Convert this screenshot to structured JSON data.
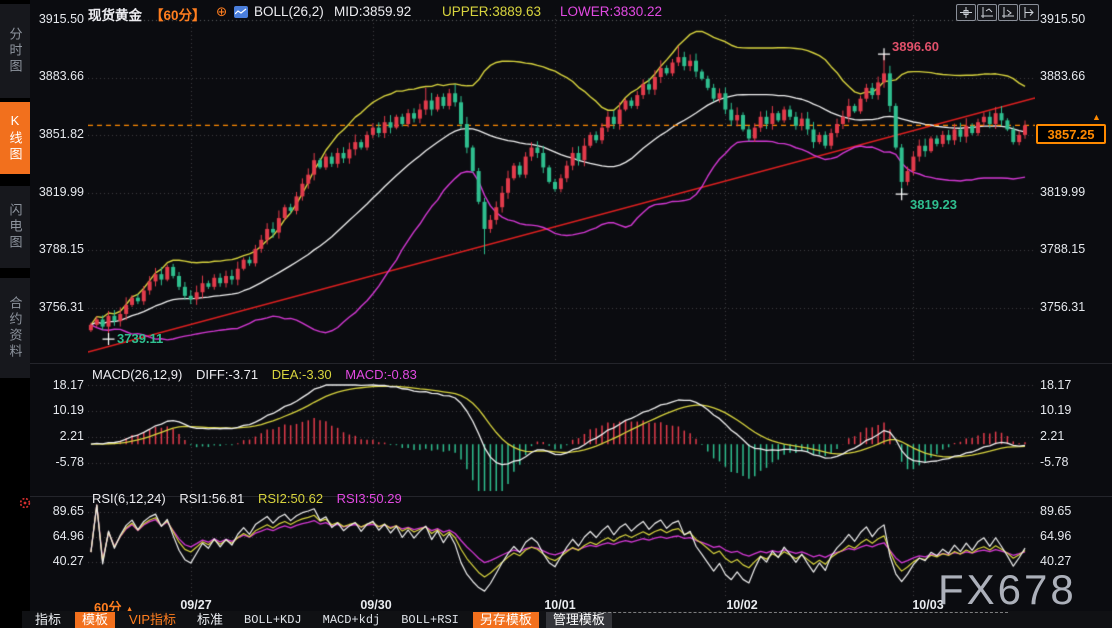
{
  "header": {
    "title": "现货黄金",
    "period": "【60分】",
    "plus": "⊕",
    "boll": "BOLL(26,2)",
    "mid": "MID:3859.92",
    "upper": "UPPER:3889.63",
    "lower": "LOWER:3830.22"
  },
  "sidebar": {
    "tabs": [
      {
        "label": "分时图",
        "active": false
      },
      {
        "label": "K线图",
        "active": true
      },
      {
        "label": "闪电图",
        "active": false
      },
      {
        "label": "合约资料",
        "active": false
      }
    ]
  },
  "main": {
    "y_labels": [
      "3915.50",
      "3883.66",
      "3851.82",
      "3819.99",
      "3788.15",
      "3756.31"
    ],
    "annotations": {
      "high": "3896.60",
      "crash_low": "3819.23",
      "session_low": "3739.11"
    },
    "last_price_label": "3857.25",
    "tag_arrow": "▲"
  },
  "macd": {
    "caption": "MACD(26,12,9)",
    "diff": "DIFF:-3.71",
    "dea": "DEA:-3.30",
    "macd": "MACD:-0.83",
    "y_labels": [
      "18.17",
      "10.19",
      "2.21",
      "-5.78"
    ]
  },
  "rsi": {
    "caption": "RSI(6,12,24)",
    "rsi1": "RSI1:56.81",
    "rsi2": "RSI2:50.62",
    "rsi3": "RSI3:50.29",
    "y_labels": [
      "89.65",
      "64.96",
      "40.27"
    ]
  },
  "x_axis": {
    "labels": [
      "09/27",
      "09/30",
      "10/01",
      "10/02",
      "10/03"
    ],
    "period": "60分",
    "arrow_up": "▲"
  },
  "bottom_toolbar": {
    "items": [
      {
        "label": "指标"
      },
      {
        "label": "模板"
      },
      {
        "label": "VIP指标"
      },
      {
        "label": "标准"
      },
      {
        "label": "BOLL+KDJ"
      },
      {
        "label": "MACD+kdj"
      },
      {
        "label": "BOLL+RSI"
      },
      {
        "label": "另存模板"
      },
      {
        "label": "管理模板"
      }
    ]
  },
  "watermark": "FX678",
  "colors": {
    "up": "#e23b4b",
    "down": "#2fbf8f",
    "band_upper": "#d8d43e",
    "band_mid": "#f0f0f0",
    "band_lower": "#d438d4",
    "trend": "#e02020",
    "last": "#ff8a00",
    "ann_high": "#e0506a",
    "ann_low": "#2fbf8f",
    "grid": "rgba(255,255,255,0.22)"
  },
  "chart_data": {
    "type": "candlestick",
    "instrument": "现货黄金 60分",
    "price_axis": [
      3915.5,
      3883.66,
      3851.82,
      3819.99,
      3788.15,
      3756.31
    ],
    "macd_axis": [
      18.17,
      10.19,
      2.21,
      -5.78
    ],
    "rsi_axis": [
      89.65,
      64.96,
      40.27
    ],
    "last_price": 3857.25,
    "session_breaks": [
      17,
      48,
      79,
      108,
      140
    ],
    "markers": [
      {
        "i": 3,
        "price": 3739.11
      },
      {
        "i": 135,
        "price": 3896.6
      },
      {
        "i": 138,
        "price": 3819.23
      }
    ],
    "wick_overrides": {
      "3": {
        "low": 3739.11
      },
      "57": {
        "high": 3878
      },
      "62": {
        "high": 3880
      },
      "67": {
        "low": 3786
      },
      "100": {
        "high": 3901
      },
      "135": {
        "high": 3896.6
      },
      "138": {
        "low": 3819.23
      }
    },
    "closes": [
      3747,
      3750,
      3746,
      3752,
      3749,
      3753,
      3758,
      3762,
      3760,
      3766,
      3771,
      3775,
      3772,
      3779,
      3774,
      3768,
      3763,
      3761,
      3765,
      3770,
      3768,
      3773,
      3770,
      3774,
      3772,
      3778,
      3783,
      3781,
      3789,
      3794,
      3800,
      3798,
      3806,
      3812,
      3810,
      3818,
      3825,
      3830,
      3838,
      3834,
      3840,
      3836,
      3842,
      3839,
      3844,
      3848,
      3845,
      3852,
      3856,
      3853,
      3859,
      3856,
      3862,
      3858,
      3864,
      3861,
      3866,
      3871,
      3866,
      3873,
      3868,
      3875,
      3870,
      3858,
      3845,
      3832,
      3815,
      3800,
      3805,
      3812,
      3820,
      3828,
      3835,
      3830,
      3840,
      3845,
      3842,
      3834,
      3826,
      3822,
      3828,
      3835,
      3842,
      3838,
      3846,
      3852,
      3849,
      3856,
      3862,
      3858,
      3866,
      3871,
      3868,
      3874,
      3880,
      3877,
      3884,
      3889,
      3886,
      3892,
      3895,
      3890,
      3893,
      3887,
      3883,
      3878,
      3872,
      3875,
      3866,
      3860,
      3863,
      3855,
      3850,
      3856,
      3862,
      3858,
      3864,
      3860,
      3866,
      3862,
      3857,
      3861,
      3855,
      3848,
      3852,
      3846,
      3853,
      3858,
      3862,
      3868,
      3865,
      3872,
      3878,
      3874,
      3881,
      3886,
      3868,
      3845,
      3826,
      3832,
      3840,
      3846,
      3843,
      3850,
      3847,
      3852,
      3849,
      3855,
      3851,
      3857,
      3853,
      3859,
      3862,
      3858,
      3864,
      3860,
      3855,
      3848,
      3852,
      3857.25
    ]
  }
}
